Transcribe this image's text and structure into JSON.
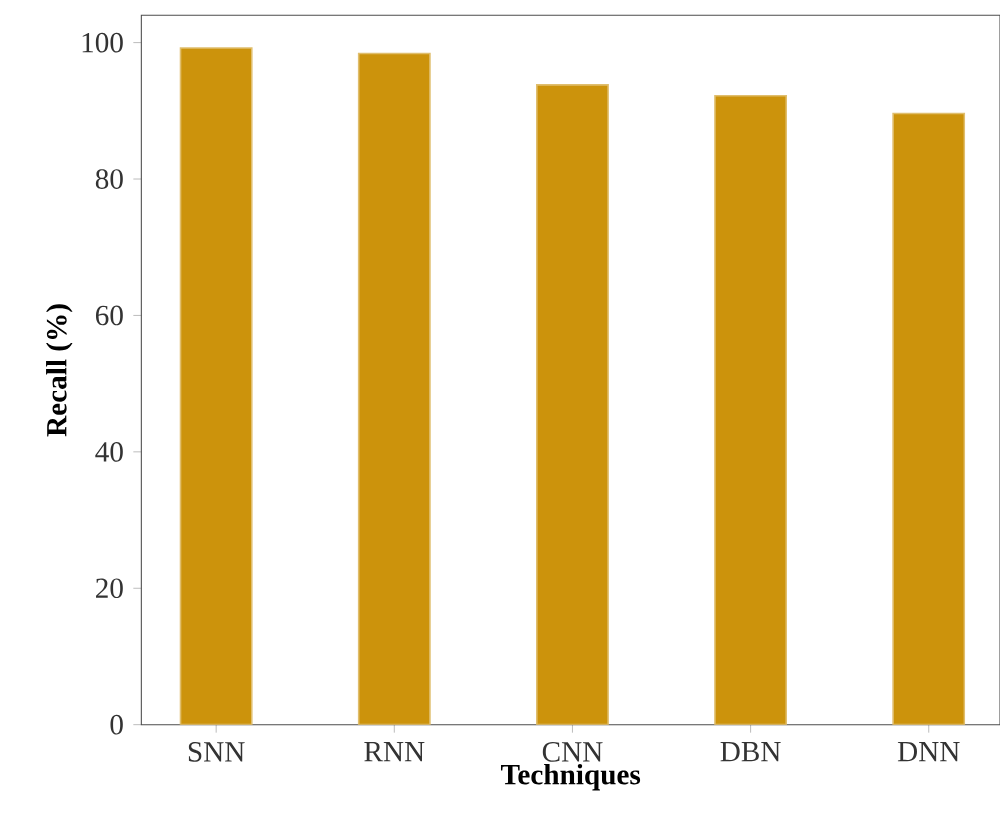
{
  "chart_data": {
    "type": "bar",
    "xlabel": "Techniques",
    "ylabel": "Recall (%)",
    "categories": [
      "SNN",
      "RNN",
      "CNN",
      "DBN",
      "DNN"
    ],
    "values": [
      99.2,
      98.4,
      93.8,
      92.2,
      89.6
    ],
    "color": "#cc930c",
    "ylim": [
      0,
      104
    ],
    "yticks": [
      0,
      20,
      40,
      60,
      80,
      100
    ],
    "grid": false
  }
}
